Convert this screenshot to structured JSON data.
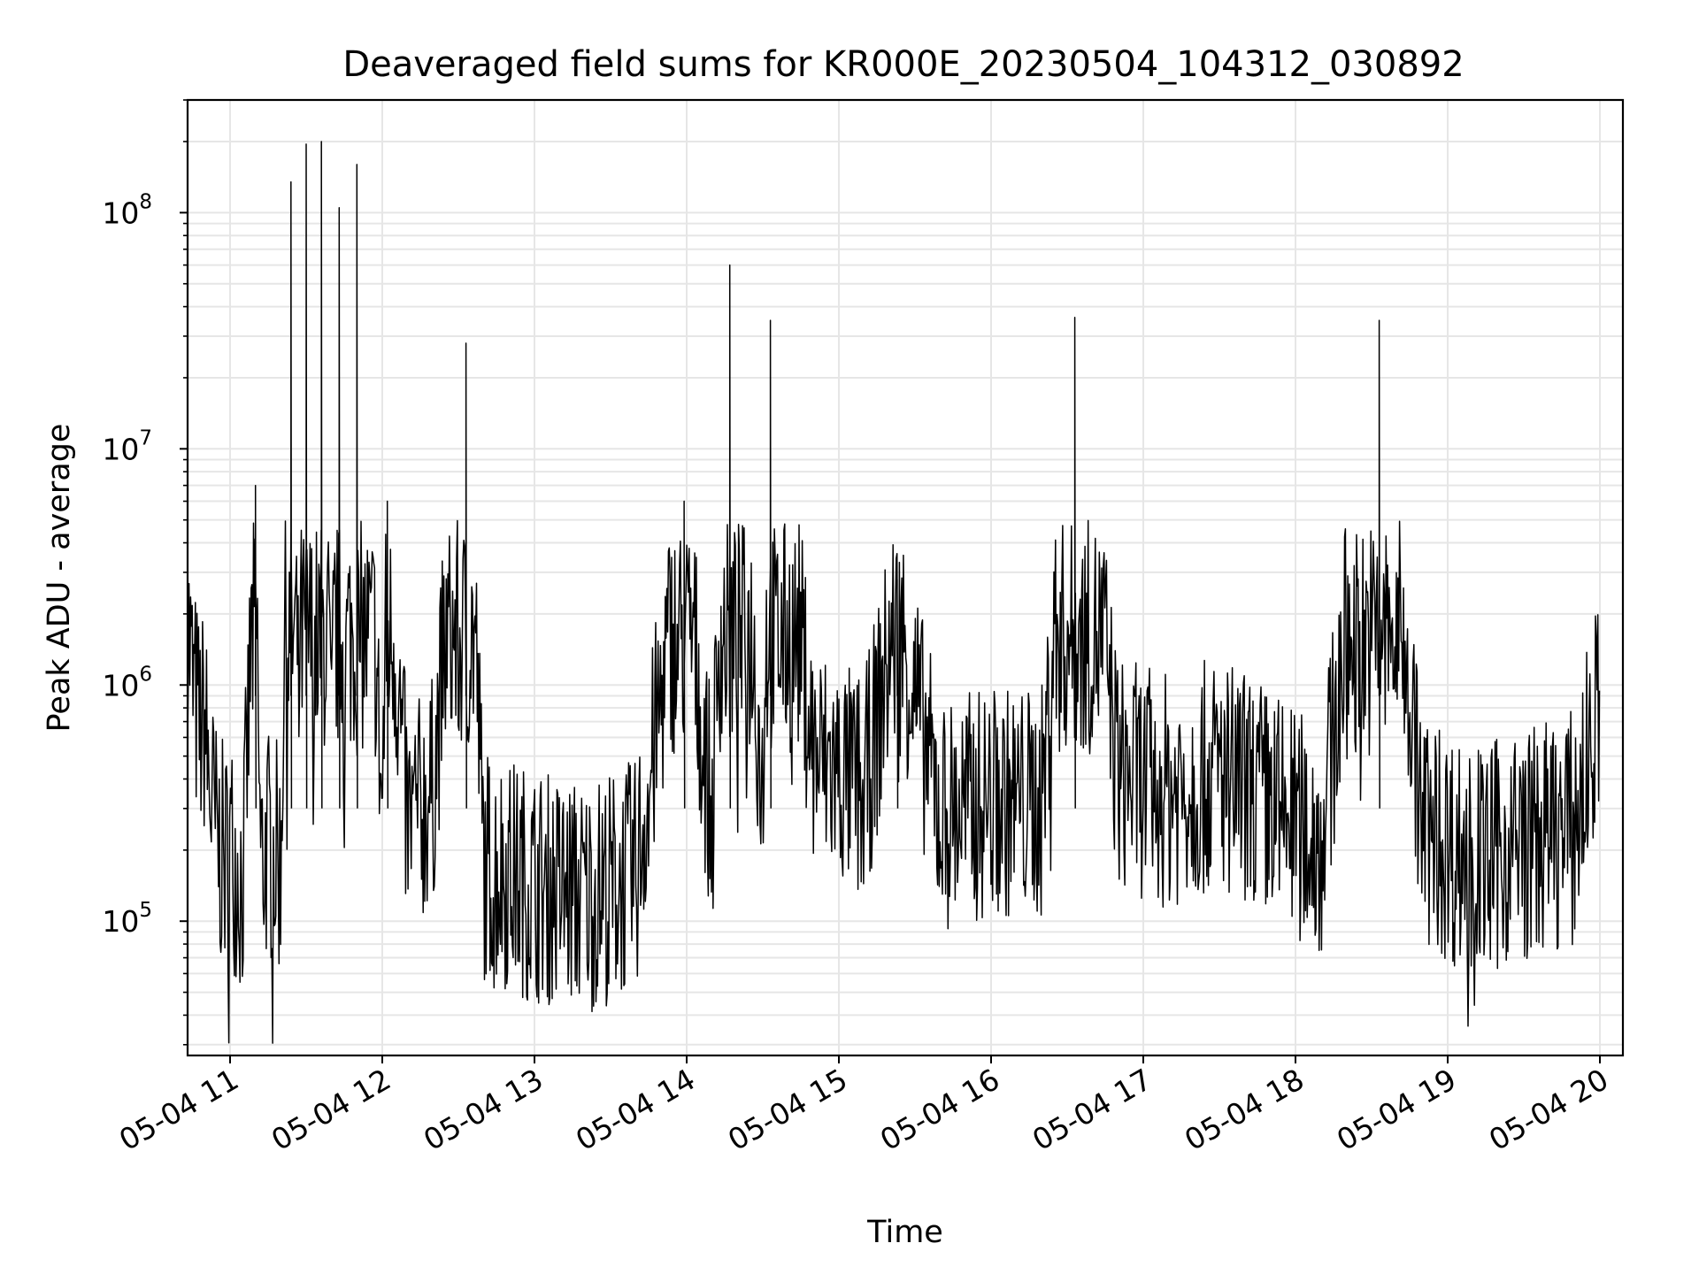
{
  "chart_data": {
    "type": "line",
    "title": "Deaveraged field sums for KR000E_20230504_104312_030892",
    "xlabel": "Time",
    "ylabel": "Peak ADU - average",
    "yscale": "log",
    "ylim": [
      27000,
      300000000
    ],
    "xlim": [
      "2023-05-04 10:43:12",
      "2023-05-04 20:00:00"
    ],
    "grid": true,
    "line_color": "#000000",
    "grid_color": "#e6e6e6",
    "x_ticks": [
      {
        "t": "2023-05-04 11:00",
        "label": "05-04 11"
      },
      {
        "t": "2023-05-04 12:00",
        "label": "05-04 12"
      },
      {
        "t": "2023-05-04 13:00",
        "label": "05-04 13"
      },
      {
        "t": "2023-05-04 14:00",
        "label": "05-04 14"
      },
      {
        "t": "2023-05-04 15:00",
        "label": "05-04 15"
      },
      {
        "t": "2023-05-04 16:00",
        "label": "05-04 16"
      },
      {
        "t": "2023-05-04 17:00",
        "label": "05-04 17"
      },
      {
        "t": "2023-05-04 18:00",
        "label": "05-04 18"
      },
      {
        "t": "2023-05-04 19:00",
        "label": "05-04 19"
      },
      {
        "t": "2023-05-04 20:00",
        "label": "05-04 20"
      }
    ],
    "y_ticks": [
      {
        "value": 100000,
        "base": "10",
        "exp": "5"
      },
      {
        "value": 1000000,
        "base": "10",
        "exp": "6"
      },
      {
        "value": 10000000,
        "base": "10",
        "exp": "7"
      },
      {
        "value": 100000000,
        "base": "10",
        "exp": "8"
      }
    ],
    "series": [
      {
        "x": [
          "2023-05-04 10:43:12",
          "2023-05-04 10:45",
          "2023-05-04 10:48",
          "2023-05-04 10:50",
          "2023-05-04 10:52",
          "2023-05-04 10:55",
          "2023-05-04 10:58",
          "2023-05-04 11:00",
          "2023-05-04 11:05",
          "2023-05-04 11:10",
          "2023-05-04 11:12",
          "2023-05-04 11:15",
          "2023-05-04 11:20",
          "2023-05-04 11:24",
          "2023-05-04 11:27",
          "2023-05-04 11:30",
          "2023-05-04 11:33",
          "2023-05-04 11:36",
          "2023-05-04 11:40",
          "2023-05-04 11:43",
          "2023-05-04 11:45",
          "2023-05-04 11:50",
          "2023-05-04 12:00",
          "2023-05-04 12:02",
          "2023-05-04 12:10",
          "2023-05-04 12:20",
          "2023-05-04 12:33",
          "2023-05-04 12:40",
          "2023-05-04 13:00",
          "2023-05-04 13:20",
          "2023-05-04 13:40",
          "2023-05-04 13:59",
          "2023-05-04 14:10",
          "2023-05-04 14:17",
          "2023-05-04 14:30",
          "2023-05-04 14:33",
          "2023-05-04 14:50",
          "2023-05-04 15:10",
          "2023-05-04 15:23",
          "2023-05-04 15:40",
          "2023-05-04 16:00",
          "2023-05-04 16:20",
          "2023-05-04 16:33",
          "2023-05-04 16:50",
          "2023-05-04 17:10",
          "2023-05-04 17:30",
          "2023-05-04 17:50",
          "2023-05-04 18:10",
          "2023-05-04 18:33",
          "2023-05-04 18:50",
          "2023-05-04 19:10",
          "2023-05-04 19:30",
          "2023-05-04 19:50",
          "2023-05-04 20:00"
        ],
        "y": [
          3000000,
          1500000,
          900000,
          1000000,
          500000,
          300000,
          250000,
          300000,
          200000,
          7000000,
          250000,
          300000,
          250000,
          135000000,
          900000,
          195000000,
          800000,
          200000000,
          600000,
          105000000,
          700000,
          160000000,
          400000,
          6000000,
          350000,
          500000,
          28000000,
          250000,
          200000,
          180000,
          220000,
          6000000,
          350000,
          60000000,
          500000,
          35000000,
          700000,
          500000,
          2800000,
          400000,
          450000,
          450000,
          36000000,
          600000,
          500000,
          600000,
          450000,
          300000,
          35000000,
          350000,
          250000,
          300000,
          350000,
          1200000
        ]
      }
    ]
  }
}
